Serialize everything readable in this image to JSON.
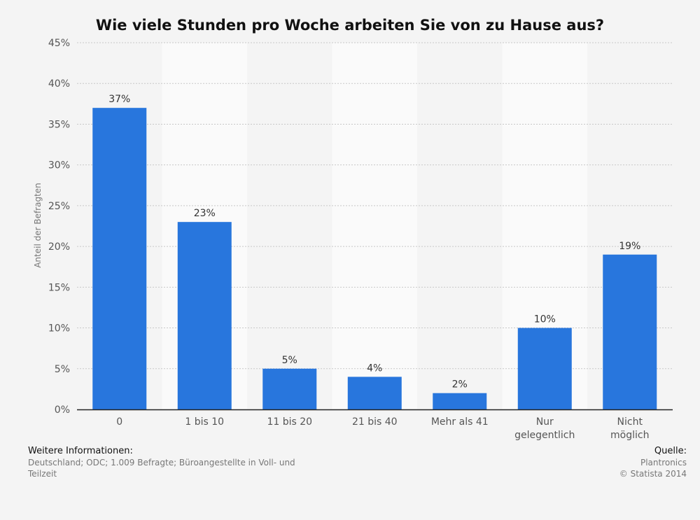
{
  "chart_data": {
    "type": "bar",
    "title": "Wie viele Stunden pro Woche arbeiten Sie von zu Hause aus?",
    "xlabel": "",
    "ylabel": "Anteil der Befragten",
    "categories": [
      "0",
      "1 bis 10",
      "11 bis 20",
      "21 bis 40",
      "Mehr als 41",
      "Nur gelegentlich",
      "Nicht möglich"
    ],
    "category_lines": [
      [
        "0"
      ],
      [
        "1 bis 10"
      ],
      [
        "11 bis 20"
      ],
      [
        "21 bis 40"
      ],
      [
        "Mehr als 41"
      ],
      [
        "Nur",
        "gelegentlich"
      ],
      [
        "Nicht",
        "möglich"
      ]
    ],
    "values": [
      37,
      23,
      5,
      4,
      2,
      10,
      19
    ],
    "value_labels": [
      "37%",
      "23%",
      "5%",
      "4%",
      "2%",
      "10%",
      "19%"
    ],
    "ylim": [
      0,
      45
    ],
    "yticks": [
      0,
      5,
      10,
      15,
      20,
      25,
      30,
      35,
      40,
      45
    ],
    "ytick_labels": [
      "0%",
      "5%",
      "10%",
      "15%",
      "20%",
      "25%",
      "30%",
      "35%",
      "40%",
      "45%"
    ],
    "grid": true,
    "legend": "none",
    "bar_color": "#2876dd"
  },
  "footer": {
    "info_heading": "Weitere Informationen:",
    "info_line1": "Deutschland; ODC; 1.009 Befragte; Büroangestellte in Voll- und",
    "info_line2": "Teilzeit",
    "source_heading": "Quelle:",
    "source_line1": "Plantronics",
    "source_line2": "© Statista 2014"
  },
  "colors": {
    "background": "#f4f4f4",
    "band_light": "#fafafa",
    "band_dark": "#f4f4f4",
    "grid": "#c8c8c8",
    "axis": "#222222"
  }
}
